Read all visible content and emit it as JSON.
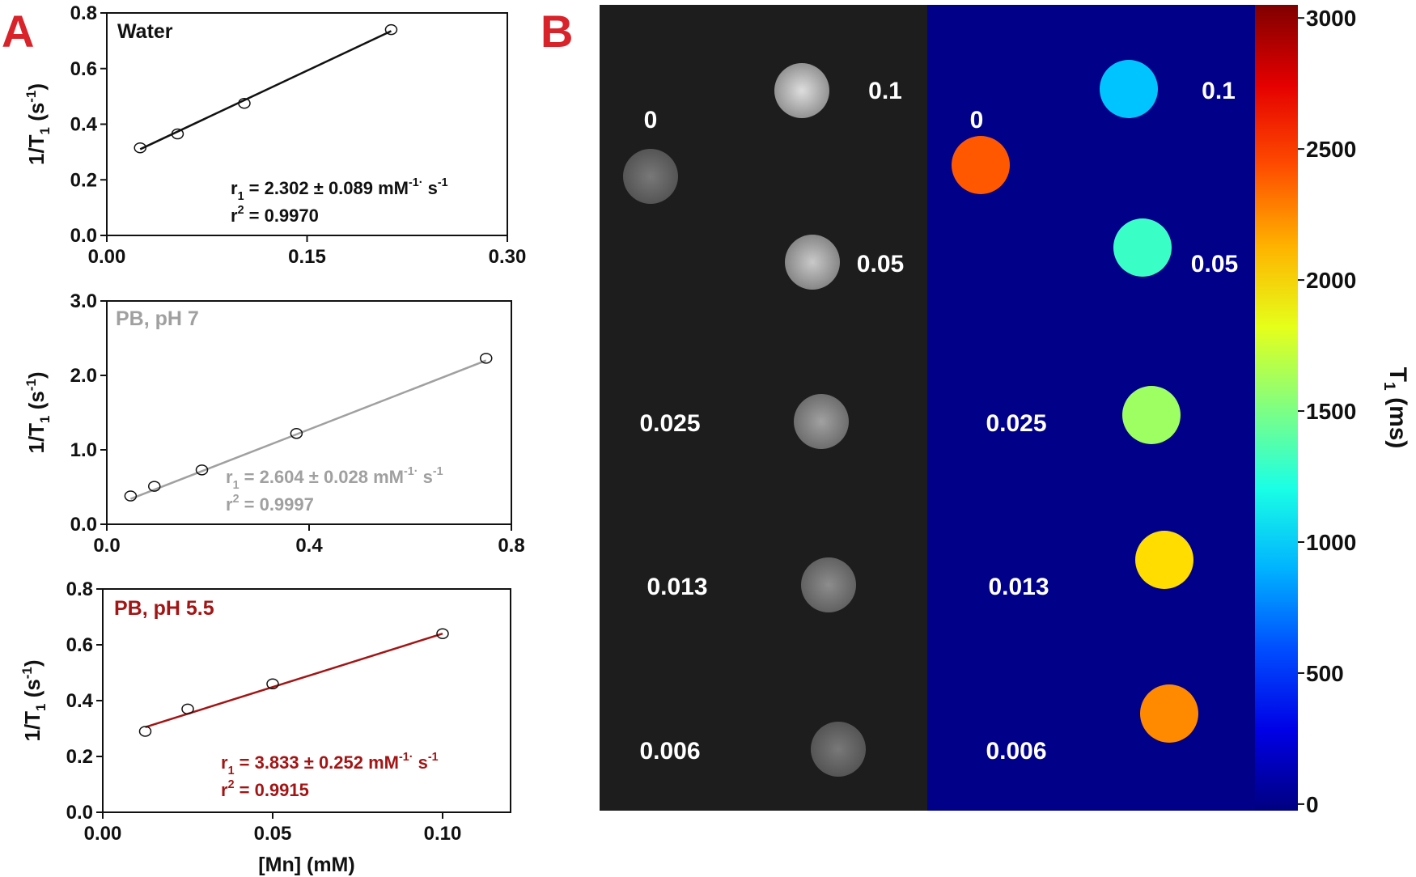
{
  "panel_labels": [
    "A",
    "B"
  ],
  "chart_data": [
    {
      "type": "scatter",
      "title": "Water",
      "color": "#111111",
      "x": [
        0.025,
        0.053,
        0.103,
        0.213
      ],
      "y": [
        0.315,
        0.365,
        0.475,
        0.74
      ],
      "fit": {
        "x": [
          0.025,
          0.213
        ],
        "y": [
          0.31,
          0.735
        ]
      },
      "xlim": [
        0,
        0.3
      ],
      "xticks": [
        {
          "value": 0,
          "label": "0.00"
        },
        0.15,
        {
          "value": 0.3,
          "label": "0.30"
        }
      ],
      "ylim": [
        0,
        0.8
      ],
      "yticks": [
        {
          "value": 0,
          "label": "0.0"
        },
        0.2,
        0.4,
        0.6,
        0.8
      ],
      "ylabel": [
        {
          "text": "1/T"
        },
        {
          "text": "1",
          "shift": "sub"
        },
        {
          "text": " (s"
        },
        {
          "text": "-1",
          "shift": "sup"
        },
        {
          "text": ")"
        }
      ],
      "annotation": [
        [
          {
            "text": "r"
          },
          {
            "text": "1",
            "shift": "sub"
          },
          {
            "text": " = 2.302 ± 0.089 mM"
          },
          {
            "text": "-1·",
            "shift": "sup"
          },
          {
            "text": " s"
          },
          {
            "text": "-1",
            "shift": "sup"
          }
        ],
        [
          {
            "text": "r"
          },
          {
            "text": "2",
            "shift": "sup"
          },
          {
            "text": "  = 0.9970"
          }
        ]
      ]
    },
    {
      "type": "scatter",
      "title": "PB, pH 7",
      "color": "#a0a0a0",
      "x": [
        0.047,
        0.094,
        0.188,
        0.375,
        0.75
      ],
      "y": [
        0.38,
        0.51,
        0.73,
        1.22,
        2.23
      ],
      "fit": {
        "x": [
          0.047,
          0.75
        ],
        "y": [
          0.34,
          2.2
        ]
      },
      "xlim": [
        0,
        0.8
      ],
      "xticks": [
        {
          "value": 0,
          "label": "0.0"
        },
        0.4,
        0.8
      ],
      "ylim": [
        0,
        3
      ],
      "yticks": [
        {
          "value": 0,
          "label": "0.0"
        },
        {
          "value": 1,
          "label": "1.0"
        },
        {
          "value": 2,
          "label": "2.0"
        },
        {
          "value": 3,
          "label": "3.0"
        }
      ],
      "ylabel": [
        {
          "text": "1/T"
        },
        {
          "text": "1",
          "shift": "sub"
        },
        {
          "text": " (s"
        },
        {
          "text": "-1",
          "shift": "sup"
        },
        {
          "text": ")"
        }
      ],
      "annotation": [
        [
          {
            "text": "r"
          },
          {
            "text": "1",
            "shift": "sub"
          },
          {
            "text": " = 2.604 ± 0.028 mM"
          },
          {
            "text": "-1·",
            "shift": "sup"
          },
          {
            "text": " s"
          },
          {
            "text": "-1",
            "shift": "sup"
          }
        ],
        [
          {
            "text": "r"
          },
          {
            "text": "2",
            "shift": "sup"
          },
          {
            "text": "  = 0.9997"
          }
        ]
      ]
    },
    {
      "type": "scatter",
      "title": "PB, pH 5.5",
      "color": "#a31515",
      "x": [
        0.0125,
        0.025,
        0.05,
        0.1
      ],
      "y": [
        0.29,
        0.37,
        0.46,
        0.64
      ],
      "fit": {
        "x": [
          0.0125,
          0.1
        ],
        "y": [
          0.305,
          0.64
        ]
      },
      "xlim": [
        0,
        0.12
      ],
      "xticks": [
        {
          "value": 0,
          "label": "0.00"
        },
        0.05,
        {
          "value": 0.1,
          "label": "0.10"
        }
      ],
      "ylim": [
        0,
        0.8
      ],
      "yticks": [
        {
          "value": 0,
          "label": "0.0"
        },
        0.2,
        0.4,
        0.6,
        0.8
      ],
      "ylabel": [
        {
          "text": "1/T"
        },
        {
          "text": "1",
          "shift": "sub"
        },
        {
          "text": " (s"
        },
        {
          "text": "-1",
          "shift": "sup"
        },
        {
          "text": ")"
        }
      ],
      "xlabel": "[Mn] (mM)",
      "annotation": [
        [
          {
            "text": "r"
          },
          {
            "text": "1",
            "shift": "sub"
          },
          {
            "text": " = 3.833 ± 0.252 mM"
          },
          {
            "text": "-1·",
            "shift": "sup"
          },
          {
            "text": " s"
          },
          {
            "text": "-1",
            "shift": "sup"
          }
        ],
        [
          {
            "text": "r"
          },
          {
            "text": "2",
            "shift": "sup"
          },
          {
            "text": "  = 0.9915"
          }
        ]
      ]
    },
    {
      "type": "t1map",
      "samples": [
        "0",
        "0.1",
        "0.05",
        "0.025",
        "0.013",
        "0.006"
      ],
      "t1": [
        2400,
        950,
        1300,
        1600,
        2000,
        2250
      ],
      "ylim": [
        -25,
        3050
      ],
      "yticks": [
        0,
        500,
        1000,
        1500,
        2000,
        2500,
        3000
      ],
      "ylabel": [
        {
          "text": "T"
        },
        {
          "text": "1",
          "shift": "sub"
        },
        {
          "text": " (ms)"
        }
      ]
    }
  ]
}
